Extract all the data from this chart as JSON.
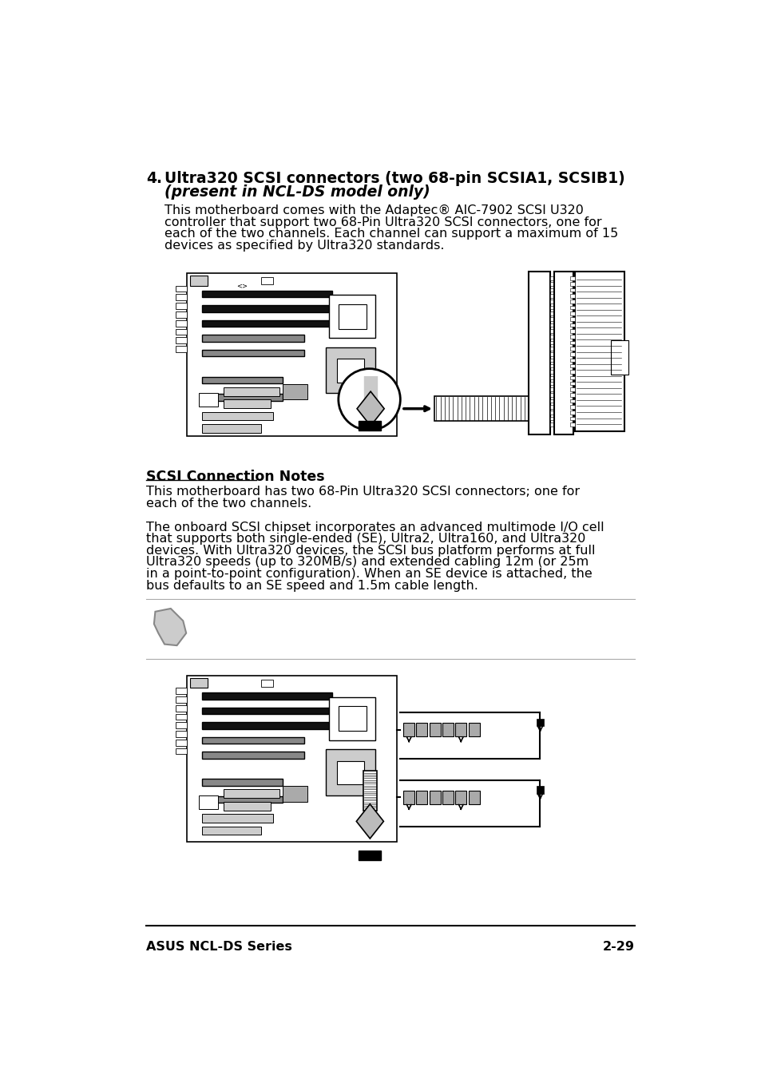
{
  "bg_color": "#ffffff",
  "text_color": "#000000",
  "footer_left": "ASUS NCL-DS Series",
  "footer_right": "2-29",
  "section_number": "4.",
  "section_title_line1": "Ultra320 SCSI connectors (two 68-pin SCSIA1, SCSIB1)",
  "section_title_line2": "(present in NCL-DS model only)",
  "body_text_1_lines": [
    "This motherboard comes with the Adaptec® AIC-7902 SCSI U320",
    "controller that support two 68-Pin Ultra320 SCSI connectors, one for",
    "each of the two channels. Each channel can support a maximum of 15",
    "devices as specified by Ultra320 standards."
  ],
  "scsi_notes_heading": "SCSI Connection Notes",
  "scsi_notes_lines": [
    "This motherboard has two 68-Pin Ultra320 SCSI connectors; one for",
    "each of the two channels."
  ],
  "body_text_2_lines": [
    "The onboard SCSI chipset incorporates an advanced multimode I/O cell",
    "that supports both single-ended (SE), Ultra2, Ultra160, and Ultra320",
    "devices. With Ultra320 devices, the SCSI bus platform performs at full",
    "Ultra320 speeds (up to 320MB/s) and extended cabling 12m (or 25m",
    "in a point-to-point configuration). When an SE device is attached, the",
    "bus defaults to an SE speed and 1.5m cable length."
  ]
}
